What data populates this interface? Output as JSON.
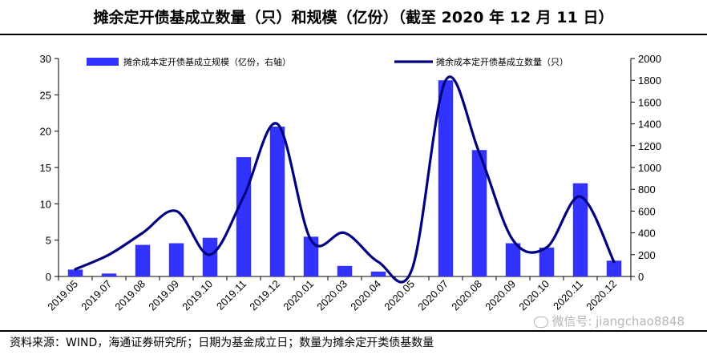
{
  "title": "摊余定开债基成立数量（只）和规模（亿份）（截至 2020 年 12 月 11 日）",
  "source": "资料来源：WIND，海通证券研究所；日期为基金成立日；数量为摊余定开类债基数量",
  "watermark": "微信号: jiangchao8848",
  "colors": {
    "bar": "#3333ff",
    "line": "#000080"
  },
  "chart_data": {
    "type": "bar+line",
    "categories": [
      "2019.05",
      "2019.07",
      "2019.08",
      "2019.09",
      "2019.10",
      "2019.11",
      "2019.12",
      "2020.01",
      "2020.03",
      "2020.04",
      "2020.05",
      "2020.07",
      "2020.08",
      "2020.09",
      "2020.10",
      "2020.11",
      "2020.12"
    ],
    "series": [
      {
        "name": "摊余成本定开债基成立规模（亿份，右轴）",
        "type": "bar",
        "axis": "right",
        "values": [
          63,
          27,
          290,
          305,
          355,
          1095,
          1375,
          365,
          97,
          45,
          0,
          1800,
          1160,
          305,
          265,
          855,
          145
        ]
      },
      {
        "name": "摊余成本定开债基成立数量（只）",
        "type": "line",
        "axis": "left",
        "values": [
          1,
          3,
          6,
          9,
          3,
          11,
          21,
          5,
          6,
          2,
          1,
          27,
          17,
          5,
          4,
          11,
          2
        ]
      }
    ],
    "left_axis": {
      "ylim": [
        0,
        30
      ],
      "ticks": [
        0,
        5,
        10,
        15,
        20,
        25,
        30
      ]
    },
    "right_axis": {
      "ylim": [
        0,
        2000
      ],
      "ticks": [
        0,
        200,
        400,
        600,
        800,
        1000,
        1200,
        1400,
        1600,
        1800,
        2000
      ]
    },
    "legend_position": "top",
    "grid": false
  }
}
